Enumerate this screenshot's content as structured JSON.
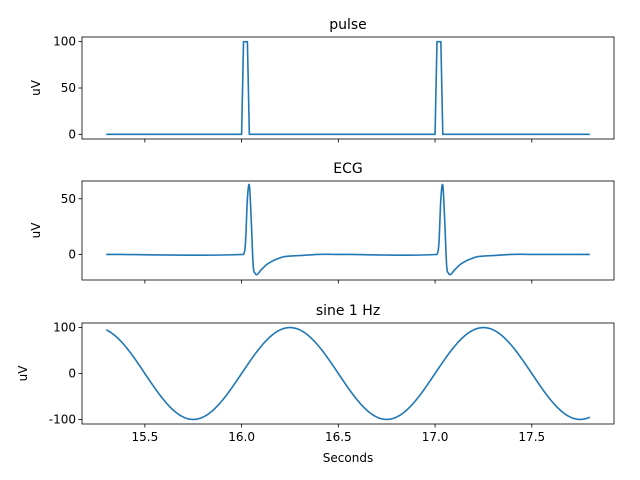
{
  "chart_data": [
    {
      "type": "line",
      "title": "pulse",
      "xlabel": "",
      "ylabel": "uV",
      "xlim": [
        15.175,
        17.925
      ],
      "ylim": [
        -5,
        105
      ],
      "yticks": [
        0,
        50,
        100
      ],
      "xticks": [
        15.5,
        16.0,
        16.5,
        17.0,
        17.5
      ],
      "show_xtick_labels": false,
      "color": "#1f77b4",
      "series": [
        {
          "x": [
            15.3,
            16.0,
            16.01,
            16.03,
            16.04,
            17.0,
            17.01,
            17.03,
            17.04,
            17.8
          ],
          "values": [
            0,
            0,
            100,
            100,
            0,
            0,
            100,
            100,
            0,
            0
          ]
        }
      ]
    },
    {
      "type": "line",
      "title": "ECG",
      "xlabel": "",
      "ylabel": "uV",
      "xlim": [
        15.175,
        17.925
      ],
      "ylim": [
        -23,
        66
      ],
      "yticks": [
        0,
        50
      ],
      "xticks": [
        15.5,
        16.0,
        16.5,
        17.0,
        17.5
      ],
      "show_xtick_labels": false,
      "color": "#1f77b4",
      "series": [
        {
          "x": [
            15.3,
            16.01,
            16.02,
            16.03,
            16.04,
            16.05,
            16.06,
            16.07,
            16.08,
            16.1,
            16.13,
            16.17,
            16.22,
            16.3,
            16.4,
            16.5,
            17.01,
            17.02,
            17.03,
            17.04,
            17.05,
            17.06,
            17.07,
            17.08,
            17.1,
            17.13,
            17.17,
            17.22,
            17.3,
            17.4,
            17.5,
            17.8
          ],
          "values": [
            0,
            0,
            10,
            50,
            62,
            30,
            -10,
            -17,
            -18,
            -14,
            -9,
            -5,
            -2,
            -1,
            0,
            0,
            0,
            10,
            50,
            62,
            30,
            -10,
            -17,
            -18,
            -14,
            -9,
            -5,
            -2,
            -1,
            0,
            0,
            0
          ]
        }
      ]
    },
    {
      "type": "line",
      "title": "sine 1 Hz",
      "xlabel": "Seconds",
      "ylabel": "uV",
      "xlim": [
        15.175,
        17.925
      ],
      "ylim": [
        -110,
        110
      ],
      "yticks": [
        -100,
        0,
        100
      ],
      "xticks": [
        15.5,
        16.0,
        16.5,
        17.0,
        17.5
      ],
      "show_xtick_labels": true,
      "color": "#1f77b4",
      "function": "sine",
      "amplitude": 100,
      "frequency_hz": 1,
      "x_range": [
        15.3,
        17.8
      ],
      "peak_at": 16.25
    }
  ]
}
